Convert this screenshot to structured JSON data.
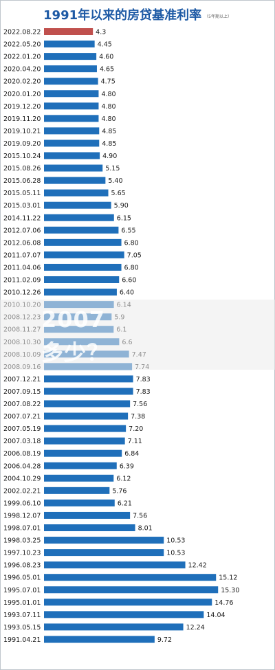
{
  "chart_data": {
    "type": "bar",
    "orientation": "horizontal",
    "title": "1991年以来的房贷基准利率",
    "title_note": "（5年期以上）",
    "highlight_color": "#c0504d",
    "bar_color": "#1f6fba",
    "categories": [
      "2022.08.22",
      "2022.05.20",
      "2022.01.20",
      "2020.04.20",
      "2020.02.20",
      "2020.01.20",
      "2019.12.20",
      "2019.11.20",
      "2019.10.21",
      "2019.09.20",
      "2015.10.24",
      "2015.08.26",
      "2015.06.28",
      "2015.05.11",
      "2015.03.01",
      "2014.11.22",
      "2012.07.06",
      "2012.06.08",
      "2011.07.07",
      "2011.04.06",
      "2011.02.09",
      "2010.12.26",
      "2010.10.20",
      "2008.12.23",
      "2008.11.27",
      "2008.10.30",
      "2008.10.09",
      "2008.09.16",
      "2007.12.21",
      "2007.09.15",
      "2007.08.22",
      "2007.07.21",
      "2007.05.19",
      "2007.03.18",
      "2006.08.19",
      "2006.04.28",
      "2004.10.29",
      "2002.02.21",
      "1999.06.10",
      "1998.12.07",
      "1998.07.01",
      "1998.03.25",
      "1997.10.23",
      "1996.08.23",
      "1996.05.01",
      "1995.07.01",
      "1995.01.01",
      "1993.07.11",
      "1993.05.15",
      "1991.04.21"
    ],
    "labels": [
      "4.3",
      "4.45",
      "4.60",
      "4.65",
      "4.75",
      "4.80",
      "4.80",
      "4.80",
      "4.85",
      "4.85",
      "4.90",
      "5.15",
      "5.40",
      "5.65",
      "5.90",
      "6.15",
      "6.55",
      "6.80",
      "7.05",
      "6.80",
      "6.60",
      "6.40",
      "6.14",
      "5.9",
      "6.1",
      "6.6",
      "7.47",
      "7.74",
      "7.83",
      "7.83",
      "7.56",
      "7.38",
      "7.20",
      "7.11",
      "6.84",
      "6.39",
      "6.12",
      "5.76",
      "6.21",
      "7.56",
      "8.01",
      "10.53",
      "10.53",
      "12.42",
      "15.12",
      "15.30",
      "14.76",
      "14.04",
      "12.24",
      "9.72"
    ],
    "values": [
      4.3,
      4.45,
      4.6,
      4.65,
      4.75,
      4.8,
      4.8,
      4.8,
      4.85,
      4.85,
      4.9,
      5.15,
      5.4,
      5.65,
      5.9,
      6.15,
      6.55,
      6.8,
      7.05,
      6.8,
      6.6,
      6.4,
      6.14,
      5.94,
      6.12,
      6.61,
      7.47,
      7.74,
      7.83,
      7.83,
      7.56,
      7.38,
      7.2,
      7.11,
      6.84,
      6.39,
      6.12,
      5.76,
      6.21,
      7.56,
      8.01,
      10.53,
      10.53,
      12.42,
      15.12,
      15.3,
      14.76,
      14.04,
      12.24,
      9.72
    ],
    "xlim": [
      0,
      16
    ]
  },
  "overlay": {
    "line1": "2007",
    "line2": "多少？"
  }
}
